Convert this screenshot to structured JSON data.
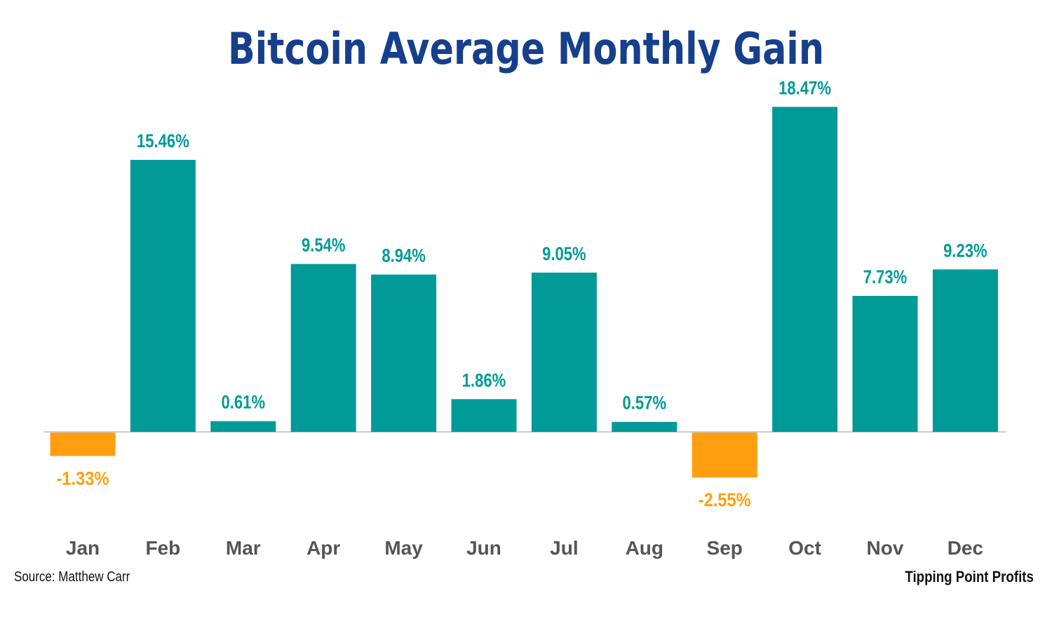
{
  "page": {
    "title": "Bitcoin Average Monthly Gain",
    "source": "Source: Matthew Carr",
    "brand": "Tipping Point Profits"
  },
  "colors": {
    "positive": "#009a99",
    "negative": "#ff9f0f",
    "title": "#163f8c",
    "month_label": "#555555",
    "axis": "#cccccc"
  },
  "chart_data": {
    "type": "bar",
    "title": "Bitcoin Average Monthly Gain",
    "categories": [
      "Jan",
      "Feb",
      "Mar",
      "Apr",
      "May",
      "Jun",
      "Jul",
      "Aug",
      "Sep",
      "Oct",
      "Nov",
      "Dec"
    ],
    "values": [
      -1.33,
      15.46,
      0.61,
      9.54,
      8.94,
      1.86,
      9.05,
      0.57,
      -2.55,
      18.47,
      7.73,
      9.23
    ],
    "data_labels": [
      "-1.33%",
      "15.46%",
      "0.61%",
      "9.54%",
      "8.94%",
      "1.86%",
      "9.05%",
      "0.57%",
      "-2.55%",
      "18.47%",
      "7.73%",
      "9.23%"
    ],
    "unit": "%",
    "ylim": [
      -5,
      20
    ],
    "xlabel": "",
    "ylabel": "",
    "grid": false,
    "legend": "none"
  }
}
